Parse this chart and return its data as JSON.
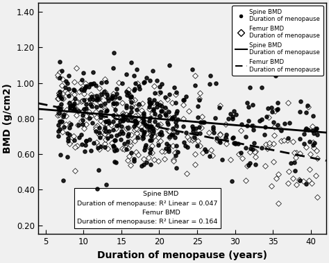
{
  "xlabel": "Duration of menopause (years)",
  "ylabel": "BMD (g/cm2)",
  "xlim": [
    4,
    42
  ],
  "ylim": [
    0.15,
    1.45
  ],
  "xticks": [
    5,
    10,
    15,
    20,
    25,
    30,
    35,
    40
  ],
  "yticks": [
    0.2,
    0.4,
    0.6,
    0.8,
    1.0,
    1.2,
    1.4
  ],
  "spine_slope": -0.0035,
  "spine_intercept": 0.868,
  "femur_slope": -0.0085,
  "femur_intercept": 0.92,
  "seed": 7,
  "n_spine": 420,
  "n_femur": 300,
  "background_color": "#f0f0f0",
  "plot_bg": "#f0f0f0",
  "annotation_text": "             Spine BMD\nDuration of menopause: R² Linear = 0.047\n             Femur BMD\nDuration of menopause: R² Linear = 0.164"
}
